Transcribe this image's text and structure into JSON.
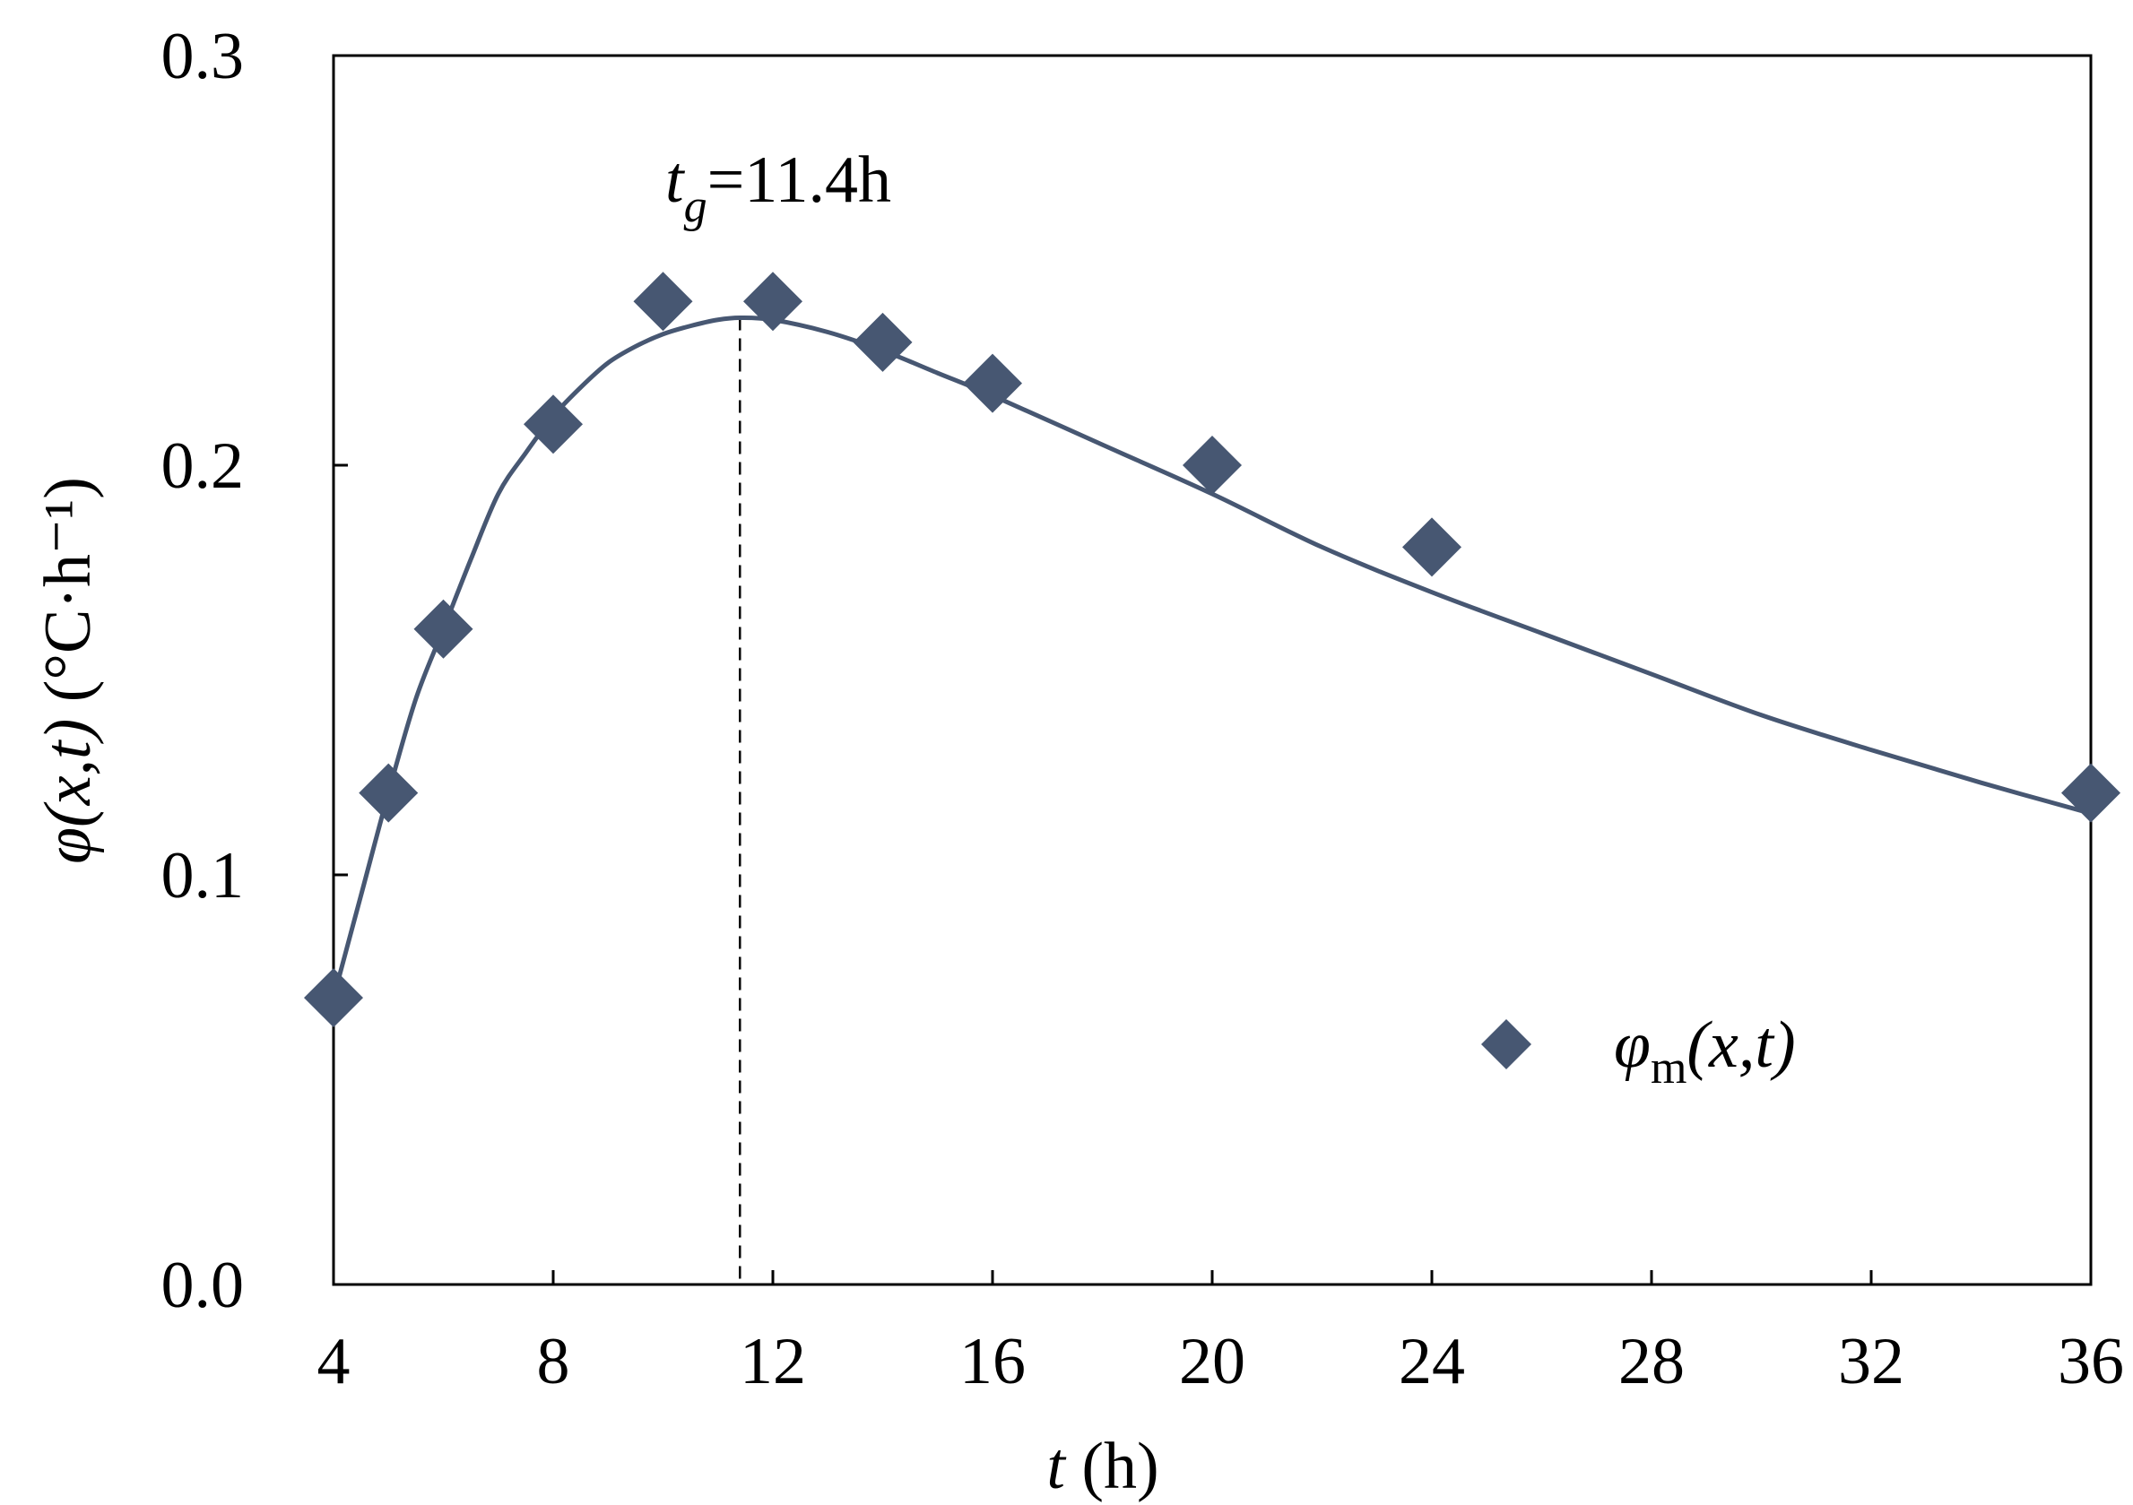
{
  "chart_data": {
    "type": "scatter",
    "xlabel": {
      "var": "t",
      "unit": " (h)"
    },
    "ylabel": {
      "var_phi": "φ",
      "args": "(x,t)",
      "unit": " (°C·h⁻¹)"
    },
    "xlim": [
      4,
      36
    ],
    "ylim": [
      0.0,
      0.3
    ],
    "x_ticks": [
      4,
      8,
      12,
      16,
      20,
      24,
      28,
      32,
      36
    ],
    "x_tick_labels": [
      "4",
      "8",
      "12",
      "16",
      "20",
      "24",
      "28",
      "32",
      "36"
    ],
    "y_ticks": [
      0.0,
      0.1,
      0.2,
      0.3
    ],
    "y_tick_labels": [
      "0.0",
      "0.1",
      "0.2",
      "0.3"
    ],
    "grid": false,
    "legend": {
      "placement": "lower-right",
      "label_phi": "φ",
      "label_sub": "m",
      "label_args": "(x,t)"
    },
    "series": [
      {
        "name": "φm(x,t)",
        "marker": "diamond",
        "color": "#475772",
        "x": [
          4,
          5,
          6,
          8,
          10,
          12,
          14,
          16,
          20,
          24,
          36
        ],
        "y": [
          0.07,
          0.12,
          0.16,
          0.21,
          0.24,
          0.24,
          0.23,
          0.22,
          0.2,
          0.18,
          0.12
        ]
      }
    ],
    "fit_curve": {
      "color": "#475772",
      "x": [
        4,
        4.5,
        5,
        5.5,
        6,
        6.5,
        7,
        7.5,
        8,
        8.5,
        9,
        9.5,
        10,
        10.5,
        11,
        11.4,
        12,
        13,
        14,
        15,
        16,
        18,
        20,
        22,
        24,
        26,
        28,
        30,
        32,
        34,
        36
      ],
      "y": [
        0.07,
        0.095,
        0.12,
        0.143,
        0.16,
        0.177,
        0.193,
        0.203,
        0.212,
        0.219,
        0.225,
        0.229,
        0.232,
        0.234,
        0.2355,
        0.236,
        0.2355,
        0.2325,
        0.228,
        0.2225,
        0.217,
        0.205,
        0.193,
        0.18,
        0.169,
        0.159,
        0.149,
        0.139,
        0.1305,
        0.1225,
        0.115
      ]
    },
    "annotation": {
      "x": 11.4,
      "var": "t",
      "sub": "g",
      "text": "=11.4h",
      "line_style": "dashed"
    }
  }
}
